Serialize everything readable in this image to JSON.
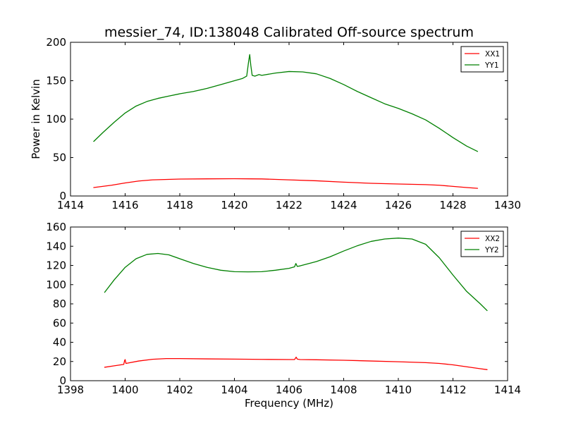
{
  "title": "messier_74, ID:138048 Calibrated Off-source spectrum",
  "chart_data": [
    {
      "type": "line",
      "title": "messier_74, ID:138048 Calibrated Off-source spectrum",
      "xlabel": "",
      "ylabel": "Power in Kelvin",
      "xlim": [
        1414,
        1430
      ],
      "ylim": [
        0,
        200
      ],
      "xticks": [
        1414,
        1416,
        1418,
        1420,
        1422,
        1424,
        1426,
        1428,
        1430
      ],
      "yticks": [
        0,
        50,
        100,
        150,
        200
      ],
      "grid": false,
      "legend_position": "top-right",
      "series": [
        {
          "name": "XX1",
          "color": "#ff0000",
          "x": [
            1414.85,
            1415.5,
            1416.0,
            1416.5,
            1417.0,
            1418.0,
            1419.0,
            1420.0,
            1420.6,
            1421.0,
            1422.0,
            1423.0,
            1424.0,
            1425.0,
            1426.0,
            1427.0,
            1427.5,
            1428.0,
            1428.5,
            1428.9
          ],
          "values": [
            11,
            14,
            17,
            19.5,
            21,
            22,
            22.3,
            22.5,
            22.3,
            22.2,
            21,
            19.8,
            18,
            16.5,
            15.6,
            14.8,
            14,
            12.5,
            11,
            10
          ]
        },
        {
          "name": "YY1",
          "color": "#008000",
          "x": [
            1414.85,
            1415.2,
            1415.6,
            1416.0,
            1416.4,
            1416.8,
            1417.2,
            1417.6,
            1418.0,
            1418.5,
            1419.0,
            1419.5,
            1420.0,
            1420.3,
            1420.45,
            1420.52,
            1420.56,
            1420.6,
            1420.65,
            1420.75,
            1420.9,
            1421.0,
            1421.5,
            1422.0,
            1422.5,
            1423.0,
            1423.5,
            1424.0,
            1424.5,
            1425.0,
            1425.5,
            1426.0,
            1426.5,
            1427.0,
            1427.5,
            1428.0,
            1428.5,
            1428.9
          ],
          "values": [
            71,
            83,
            96,
            108,
            117,
            123,
            127,
            130,
            133,
            136,
            140,
            145,
            150,
            153,
            156,
            175,
            184,
            170,
            157,
            156,
            158,
            157,
            160,
            162,
            161.5,
            159,
            153,
            145,
            136,
            128,
            120,
            114,
            107,
            99,
            88,
            76,
            65,
            58
          ]
        }
      ]
    },
    {
      "type": "line",
      "xlabel": "Frequency (MHz)",
      "ylabel": "",
      "xlim": [
        1398,
        1414
      ],
      "ylim": [
        0,
        160
      ],
      "xticks": [
        1398,
        1400,
        1402,
        1404,
        1406,
        1408,
        1410,
        1412,
        1414
      ],
      "yticks": [
        0,
        20,
        40,
        60,
        80,
        100,
        120,
        140,
        160
      ],
      "grid": false,
      "legend_position": "top-right",
      "series": [
        {
          "name": "XX2",
          "color": "#ff0000",
          "x": [
            1399.25,
            1399.6,
            1399.95,
            1399.98,
            1400.0,
            1400.03,
            1400.5,
            1401.0,
            1401.5,
            1402.0,
            1403.0,
            1404.0,
            1405.0,
            1406.0,
            1406.2,
            1406.26,
            1406.3,
            1406.4,
            1407.0,
            1408.0,
            1409.0,
            1410.0,
            1411.0,
            1411.5,
            1412.0,
            1412.5,
            1413.0,
            1413.25
          ],
          "values": [
            14,
            15.5,
            17,
            21,
            22,
            18,
            20.5,
            22.3,
            23,
            23,
            22.7,
            22.5,
            22.2,
            22,
            22,
            24.5,
            22.5,
            22,
            21.8,
            21.3,
            20.5,
            19.7,
            18.8,
            18,
            16.5,
            14.5,
            12.5,
            11.5
          ]
        },
        {
          "name": "YY2",
          "color": "#008000",
          "x": [
            1399.25,
            1399.6,
            1400.0,
            1400.4,
            1400.8,
            1401.2,
            1401.6,
            1402.0,
            1402.5,
            1403.0,
            1403.5,
            1404.0,
            1404.5,
            1405.0,
            1405.5,
            1406.0,
            1406.2,
            1406.25,
            1406.3,
            1406.4,
            1407.0,
            1407.5,
            1408.0,
            1408.5,
            1409.0,
            1409.5,
            1410.0,
            1410.5,
            1411.0,
            1411.5,
            1412.0,
            1412.5,
            1413.0,
            1413.25
          ],
          "values": [
            92,
            105,
            118,
            127,
            131.5,
            132.5,
            131,
            127,
            122,
            118,
            115,
            113.5,
            113.3,
            113.5,
            115,
            117,
            118.5,
            122,
            119,
            119.5,
            124,
            129,
            135,
            140.5,
            145,
            147.5,
            148.5,
            147.5,
            142,
            128,
            110,
            93,
            80,
            73
          ]
        }
      ]
    }
  ]
}
